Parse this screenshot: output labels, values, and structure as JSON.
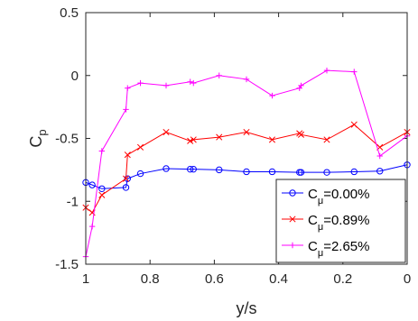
{
  "chart_data": {
    "type": "line",
    "xlabel": "y/s",
    "ylabel": "C",
    "ylabel_sub": "p",
    "xlim": [
      1,
      0
    ],
    "ylim": [
      -1.5,
      0.5
    ],
    "x_reversed": true,
    "xticks": [
      1,
      0.8,
      0.6,
      0.4,
      0.2,
      0
    ],
    "xtick_labels": [
      "1",
      "0.8",
      "0.6",
      "0.4",
      "0.2",
      "0"
    ],
    "yticks": [
      0.5,
      0,
      -0.5,
      -1,
      -1.5
    ],
    "ytick_labels": [
      "0.5",
      "0",
      "-0.5",
      "-1",
      "-1.5"
    ],
    "grid": false,
    "legend_position": "bottom-right",
    "series": [
      {
        "name_main": "C",
        "name_sub": "μ",
        "name_value": "=0.00%",
        "color": "#0000ff",
        "marker": "circle",
        "x": [
          1.0,
          0.98,
          0.95,
          0.875,
          0.87,
          0.83,
          0.75,
          0.675,
          0.665,
          0.585,
          0.5,
          0.42,
          0.335,
          0.33,
          0.25,
          0.165,
          0.085,
          0.0
        ],
        "y": [
          -0.85,
          -0.87,
          -0.9,
          -0.89,
          -0.82,
          -0.78,
          -0.74,
          -0.745,
          -0.745,
          -0.75,
          -0.765,
          -0.765,
          -0.77,
          -0.77,
          -0.77,
          -0.765,
          -0.76,
          -0.71
        ]
      },
      {
        "name_main": "C",
        "name_sub": "μ",
        "name_value": "=0.89%",
        "color": "#ff0000",
        "marker": "x",
        "x": [
          1.0,
          0.98,
          0.95,
          0.875,
          0.87,
          0.83,
          0.75,
          0.675,
          0.665,
          0.585,
          0.5,
          0.42,
          0.335,
          0.33,
          0.25,
          0.165,
          0.085,
          0.0
        ],
        "y": [
          -1.05,
          -1.09,
          -0.95,
          -0.82,
          -0.63,
          -0.57,
          -0.45,
          -0.52,
          -0.51,
          -0.49,
          -0.45,
          -0.51,
          -0.46,
          -0.47,
          -0.51,
          -0.39,
          -0.57,
          -0.45
        ]
      },
      {
        "name_main": "C",
        "name_sub": "μ",
        "name_value": "=2.65%",
        "color": "#ff00ff",
        "marker": "plus",
        "x": [
          1.0,
          0.98,
          0.95,
          0.875,
          0.87,
          0.83,
          0.75,
          0.675,
          0.665,
          0.585,
          0.5,
          0.42,
          0.335,
          0.33,
          0.25,
          0.165,
          0.085,
          0.0
        ],
        "y": [
          -1.44,
          -1.2,
          -0.6,
          -0.27,
          -0.1,
          -0.06,
          -0.08,
          -0.05,
          -0.06,
          0.0,
          -0.03,
          -0.16,
          -0.1,
          -0.08,
          0.04,
          0.03,
          -0.64,
          -0.48
        ]
      }
    ]
  }
}
